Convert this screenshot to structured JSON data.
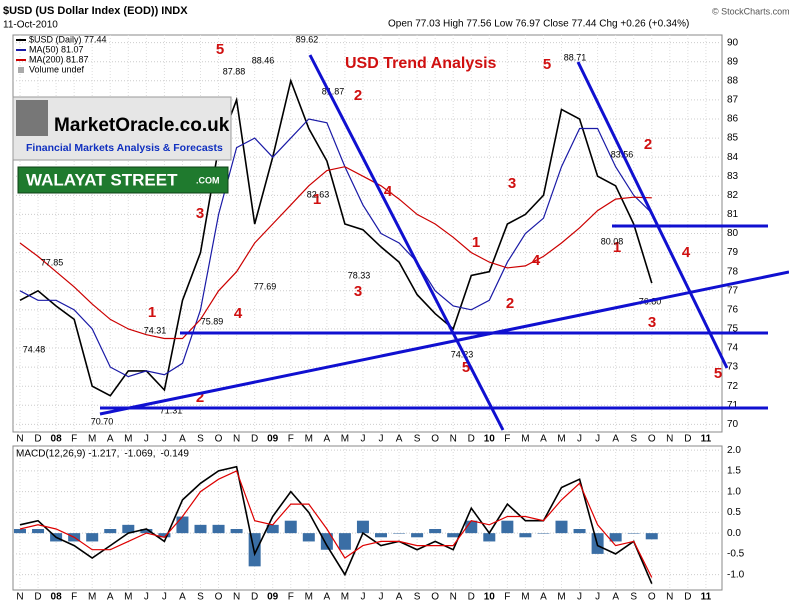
{
  "header": {
    "symbol": "$USD (US Dollar Index (EOD)) INDX",
    "date": "11-Oct-2010",
    "quote": "Open 77.03 High 77.56 Low 76.97 Close 77.44 Chg +0.26 (+0.34%)",
    "source": "© StockCharts.com"
  },
  "branding": {
    "site": "MarketOracle.co.uk",
    "tagline": "Financial Markets Analysis & Forecasts",
    "name": "WALAYAT STREET",
    "suffix": ".COM"
  },
  "chart_data": [
    {
      "type": "line",
      "title": "USD Trend Analysis",
      "categories": [
        "N",
        "D",
        "08",
        "F",
        "M",
        "A",
        "M",
        "J",
        "J",
        "A",
        "S",
        "O",
        "N",
        "D",
        "09",
        "F",
        "M",
        "A",
        "M",
        "J",
        "J",
        "A",
        "S",
        "O",
        "N",
        "D",
        "10",
        "F",
        "M",
        "A",
        "M",
        "J",
        "J",
        "A",
        "S",
        "O",
        "N",
        "D",
        "11"
      ],
      "series": [
        {
          "name": "$USD (Daily) 77.44",
          "color": "#000000",
          "values": [
            76.5,
            77.0,
            76.2,
            75.5,
            72.0,
            71.5,
            72.8,
            72.8,
            71.8,
            76.5,
            79.0,
            84.5,
            87.0,
            80.5,
            84.0,
            88.0,
            85.5,
            83.8,
            80.5,
            80.2,
            79.3,
            78.5,
            76.8,
            75.8,
            75.0,
            77.8,
            78.0,
            80.5,
            81.0,
            82.0,
            86.5,
            86.0,
            83.0,
            82.5,
            80.5,
            77.4,
            null,
            null,
            null
          ]
        },
        {
          "name": "MA(50) 81.07",
          "color": "#1a1aa6",
          "values": [
            77.0,
            76.5,
            76.5,
            76.0,
            75.0,
            73.0,
            72.5,
            72.8,
            72.6,
            73.2,
            76.0,
            81.0,
            84.5,
            85.0,
            84.0,
            85.0,
            86.0,
            85.8,
            83.5,
            81.5,
            80.0,
            79.5,
            78.5,
            77.0,
            76.2,
            76.0,
            76.5,
            78.5,
            80.0,
            80.8,
            83.5,
            85.5,
            85.5,
            83.5,
            82.0,
            81.07,
            null,
            null,
            null
          ]
        },
        {
          "name": "MA(200) 81.87",
          "color": "#cc0000",
          "values": [
            79.5,
            78.8,
            78.0,
            77.2,
            76.3,
            75.5,
            75.0,
            74.7,
            74.5,
            74.5,
            75.5,
            77.0,
            78.0,
            79.5,
            80.5,
            81.5,
            82.5,
            83.3,
            83.5,
            83.0,
            82.5,
            81.8,
            81.0,
            80.5,
            79.8,
            79.0,
            78.5,
            78.2,
            78.3,
            78.8,
            79.5,
            80.3,
            81.2,
            81.8,
            81.9,
            81.87,
            null,
            null,
            null
          ]
        }
      ],
      "legend_note": "Volume undef",
      "ylim": [
        69.6,
        90.4
      ],
      "yticks": [
        70,
        71,
        72,
        73,
        74,
        75,
        76,
        77,
        78,
        79,
        80,
        81,
        82,
        83,
        84,
        85,
        86,
        87,
        88,
        89,
        90
      ],
      "grid": true,
      "wave_labels": [
        "1",
        "2",
        "3",
        "4",
        "5",
        "1",
        "2",
        "3",
        "4",
        "5",
        "1",
        "2",
        "3",
        "4",
        "5",
        "1",
        "2",
        "3",
        "4",
        "5"
      ],
      "price_labels": [
        "77.85",
        "74.48",
        "74.31",
        "75.89",
        "71.31",
        "70.70",
        "87.88",
        "88.46",
        "77.69",
        "89.62",
        "81.87",
        "82.63",
        "78.33",
        "74.23",
        "88.71",
        "83.56",
        "80.08",
        "76.80"
      ]
    },
    {
      "type": "line",
      "categories": [
        "N",
        "D",
        "08",
        "F",
        "M",
        "A",
        "M",
        "J",
        "J",
        "A",
        "S",
        "O",
        "N",
        "D",
        "09",
        "F",
        "M",
        "A",
        "M",
        "J",
        "J",
        "A",
        "S",
        "O",
        "N",
        "D",
        "10",
        "F",
        "M",
        "A",
        "M",
        "J",
        "J",
        "A",
        "S",
        "O",
        "N",
        "D",
        "11"
      ],
      "series": [
        {
          "name": "-0.149",
          "color": "#3a6ea5",
          "style": "bar",
          "values": [
            0.1,
            0.1,
            -0.2,
            -0.2,
            -0.2,
            0.1,
            0.2,
            0.1,
            -0.1,
            0.4,
            0.2,
            0.2,
            0.1,
            -0.8,
            0.2,
            0.3,
            -0.2,
            -0.4,
            -0.4,
            0.3,
            -0.1,
            0.0,
            -0.1,
            0.1,
            -0.1,
            0.3,
            -0.2,
            0.3,
            -0.1,
            0.0,
            0.3,
            0.1,
            -0.5,
            -0.2,
            0.0,
            -0.149,
            null,
            null,
            null
          ]
        },
        {
          "name": "MACD(12,26,9) -1.217,",
          "color": "#000000",
          "values": [
            0.2,
            0.3,
            -0.1,
            -0.3,
            -0.6,
            -0.3,
            0.0,
            0.1,
            -0.2,
            0.8,
            1.2,
            1.5,
            1.6,
            -0.5,
            0.4,
            1.0,
            0.5,
            -0.3,
            -1.0,
            0.0,
            -0.3,
            -0.2,
            -0.4,
            -0.2,
            -0.4,
            0.6,
            0.0,
            0.7,
            0.3,
            0.3,
            1.1,
            1.3,
            -0.3,
            -0.5,
            -0.2,
            -1.217,
            null,
            null,
            null
          ]
        },
        {
          "name": "-1.069,",
          "color": "#dd0000",
          "values": [
            0.1,
            0.2,
            0.1,
            -0.1,
            -0.4,
            -0.4,
            -0.2,
            0.0,
            -0.1,
            0.4,
            1.0,
            1.3,
            1.5,
            0.3,
            0.2,
            0.7,
            0.7,
            0.1,
            -0.6,
            -0.3,
            -0.2,
            -0.2,
            -0.3,
            -0.3,
            -0.3,
            0.3,
            0.2,
            0.4,
            0.4,
            0.3,
            0.8,
            1.2,
            0.2,
            -0.3,
            -0.2,
            -1.069,
            null,
            null,
            null
          ]
        }
      ],
      "ylim": [
        -1.37,
        2.1
      ],
      "yticks": [
        {
          "value": 2,
          "label": "2.0"
        },
        {
          "value": 1.5,
          "label": "1.5"
        },
        {
          "value": 1,
          "label": "1.0"
        },
        {
          "value": 0.5,
          "label": "0.5"
        },
        {
          "value": 0,
          "label": "0.0"
        },
        {
          "value": -0.5,
          "label": "-0.5"
        },
        {
          "value": -1,
          "label": "-1.0"
        }
      ],
      "grid": true
    }
  ]
}
